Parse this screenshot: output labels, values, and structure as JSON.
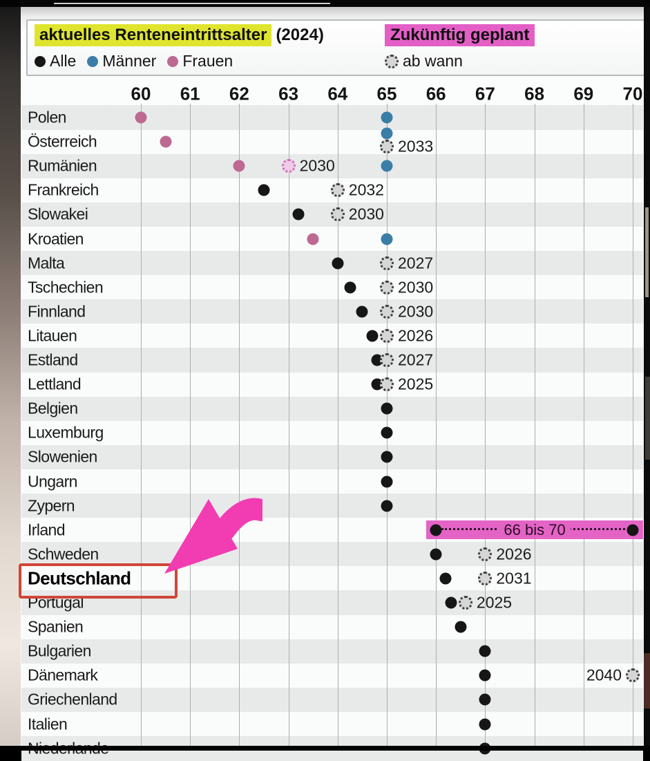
{
  "header": {
    "current_label": "aktuelles Renteneintrittsalter",
    "current_year_suffix": "(2024)",
    "legend": [
      {
        "id": "alle",
        "label": "Alle",
        "color": "#161616"
      },
      {
        "id": "maenner",
        "label": "Männer",
        "color": "#3a7ea8"
      },
      {
        "id": "frauen",
        "label": "Frauen",
        "color": "#bd6991"
      }
    ],
    "planned_label": "Zukünftig geplant",
    "planned_legend_label": "ab wann",
    "highlight_yellow": "#dfe52e",
    "highlight_pink": "#e35fc6"
  },
  "chart_data": {
    "type": "scatter",
    "title": "aktuelles Renteneintrittsalter (2024) / Zukünftig geplant",
    "xlabel": "",
    "ylabel": "",
    "x_ticks": [
      60,
      61,
      62,
      63,
      64,
      65,
      66,
      67,
      68,
      69,
      70
    ],
    "x_range": [
      59.5,
      70.3
    ],
    "grid": true,
    "series_colors": {
      "alle": "#161616",
      "maenner": "#3a7ea8",
      "frauen": "#bd6991"
    },
    "rows": [
      {
        "country": "Polen",
        "dots": [
          {
            "series": "frauen",
            "value": 60
          },
          {
            "series": "maenner",
            "value": 65
          }
        ]
      },
      {
        "country": "Österreich",
        "dots": [
          {
            "series": "frauen",
            "value": 60.5
          },
          {
            "series": "maenner",
            "value": 65,
            "dy": -12
          }
        ],
        "future": {
          "value": 65,
          "year": "2033",
          "dy": 7
        }
      },
      {
        "country": "Rumänien",
        "dots": [
          {
            "series": "frauen",
            "value": 62
          },
          {
            "series": "maenner",
            "value": 65
          }
        ],
        "future": {
          "value": 63,
          "year": "2030",
          "variant": "pink"
        }
      },
      {
        "country": "Frankreich",
        "dots": [
          {
            "series": "alle",
            "value": 62.5
          }
        ],
        "future": {
          "value": 64,
          "year": "2032"
        }
      },
      {
        "country": "Slowakei",
        "dots": [
          {
            "series": "alle",
            "value": 63.2
          }
        ],
        "future": {
          "value": 64,
          "year": "2030"
        }
      },
      {
        "country": "Kroatien",
        "dots": [
          {
            "series": "frauen",
            "value": 63.5
          },
          {
            "series": "maenner",
            "value": 65
          }
        ]
      },
      {
        "country": "Malta",
        "dots": [
          {
            "series": "alle",
            "value": 64
          }
        ],
        "future": {
          "value": 65,
          "year": "2027"
        }
      },
      {
        "country": "Tschechien",
        "dots": [
          {
            "series": "alle",
            "value": 64.25
          }
        ],
        "future": {
          "value": 65,
          "year": "2030"
        }
      },
      {
        "country": "Finnland",
        "dots": [
          {
            "series": "alle",
            "value": 64.5
          }
        ],
        "future": {
          "value": 65,
          "year": "2030"
        }
      },
      {
        "country": "Litauen",
        "dots": [
          {
            "series": "alle",
            "value": 64.7
          }
        ],
        "future": {
          "value": 65,
          "year": "2026"
        }
      },
      {
        "country": "Estland",
        "dots": [
          {
            "series": "alle",
            "value": 64.8
          }
        ],
        "future": {
          "value": 65,
          "year": "2027"
        }
      },
      {
        "country": "Lettland",
        "dots": [
          {
            "series": "alle",
            "value": 64.8
          }
        ],
        "future": {
          "value": 65,
          "year": "2025"
        }
      },
      {
        "country": "Belgien",
        "dots": [
          {
            "series": "alle",
            "value": 65
          }
        ]
      },
      {
        "country": "Luxemburg",
        "dots": [
          {
            "series": "alle",
            "value": 65
          }
        ]
      },
      {
        "country": "Slowenien",
        "dots": [
          {
            "series": "alle",
            "value": 65
          }
        ]
      },
      {
        "country": "Ungarn",
        "dots": [
          {
            "series": "alle",
            "value": 65
          }
        ]
      },
      {
        "country": "Zypern",
        "dots": [
          {
            "series": "alle",
            "value": 65
          }
        ]
      },
      {
        "country": "Irland",
        "dots": [
          {
            "series": "alle",
            "value": 66
          },
          {
            "series": "alle",
            "value": 70
          }
        ],
        "band": {
          "from": 66,
          "to": 70,
          "label": "66 bis 70"
        }
      },
      {
        "country": "Schweden",
        "dots": [
          {
            "series": "alle",
            "value": 66
          }
        ],
        "future": {
          "value": 67,
          "year": "2026"
        }
      },
      {
        "country": "Deutschland",
        "dots": [
          {
            "series": "alle",
            "value": 66.2
          }
        ],
        "future": {
          "value": 67,
          "year": "2031"
        },
        "emphasis": true
      },
      {
        "country": "Portugal",
        "dots": [
          {
            "series": "alle",
            "value": 66.3
          }
        ],
        "future": {
          "value": 66.6,
          "year": "2025"
        }
      },
      {
        "country": "Spanien",
        "dots": [
          {
            "series": "alle",
            "value": 66.5
          }
        ]
      },
      {
        "country": "Bulgarien",
        "dots": [
          {
            "series": "alle",
            "value": 67
          }
        ]
      },
      {
        "country": "Dänemark",
        "dots": [
          {
            "series": "alle",
            "value": 67
          }
        ],
        "future": {
          "value": 70,
          "year": "2040",
          "label_side": "left"
        }
      },
      {
        "country": "Griechenland",
        "dots": [
          {
            "series": "alle",
            "value": 67
          }
        ]
      },
      {
        "country": "Italien",
        "dots": [
          {
            "series": "alle",
            "value": 67
          }
        ]
      },
      {
        "country": "Niederlande",
        "dots": [
          {
            "series": "alle",
            "value": 67
          }
        ]
      }
    ]
  },
  "annotations": {
    "highlighted_country": "Deutschland",
    "arrow_color": "#f23db2",
    "box_color": "#d04538"
  }
}
